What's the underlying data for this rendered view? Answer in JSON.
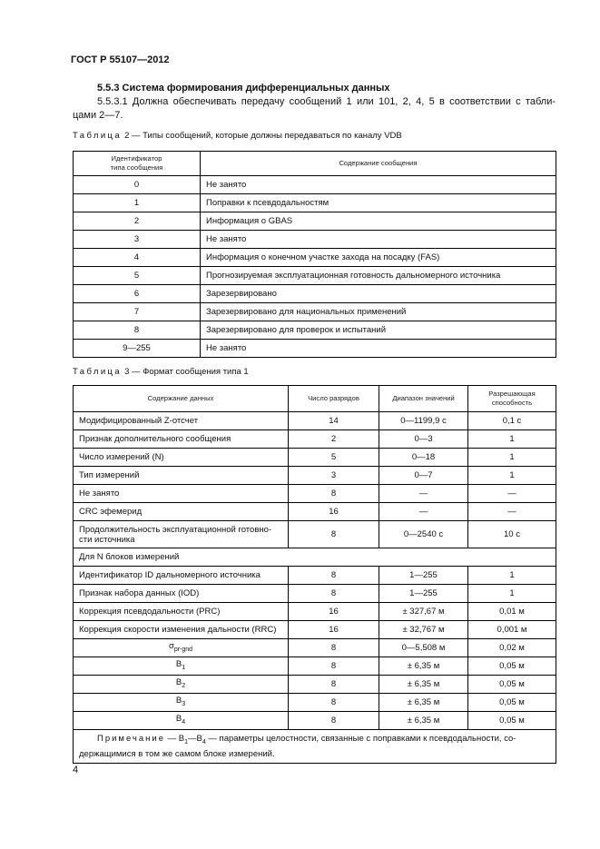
{
  "header": {
    "title": "ГОСТ Р 55107—2012"
  },
  "section": {
    "heading": "5.5.3 Система формирования дифференциальных данных",
    "paragraph": [
      "5.5.3.1 Должна обеспечивать передачу сообщений 1 или 101, 2, 4, 5 в соответствии с табли-",
      "цами 2—7."
    ]
  },
  "table2": {
    "caption": {
      "label": "Таблица",
      "text": "2 — Типы сообщений, которые должны передаваться по каналу VDB"
    },
    "header": [
      [
        "Идентификатор",
        "типа сообщения"
      ],
      "Содержание сообщения"
    ],
    "rows": [
      [
        "0",
        "Не занято"
      ],
      [
        "1",
        "Поправки к псевдодальностям"
      ],
      [
        "2",
        "Информация о GBAS"
      ],
      [
        "3",
        "Не занято"
      ],
      [
        "4",
        "Информация о конечном участке захода на посадку (FAS)"
      ],
      [
        "5",
        "Прогнозируемая эксплуатационная готовность дальномерного источника"
      ],
      [
        "6",
        "Зарезервировано"
      ],
      [
        "7",
        "Зарезервировано для национальных применений"
      ],
      [
        "8",
        "Зарезервировано для проверок и испытаний"
      ],
      [
        "9—255",
        "Не занято"
      ]
    ]
  },
  "table3": {
    "caption": {
      "label": "Таблица",
      "text": "3 — Формат сообщения типа 1"
    },
    "header": [
      "Содержание данных",
      "Число разрядов",
      "Диапазон значений",
      [
        "Разрешающая",
        "способность"
      ]
    ],
    "rows": [
      [
        "Модифицированный Z-отсчет",
        "14",
        "0—1199,9 с",
        "0,1 с"
      ],
      [
        "Признак дополнительного сообщения",
        "2",
        "0—3",
        "1"
      ],
      [
        "Число измерений (N)",
        "5",
        "0—18",
        "1"
      ],
      [
        "Тип измерений",
        "3",
        "0—7",
        "1"
      ],
      [
        "Не занято",
        "8",
        "—",
        "—"
      ],
      [
        "CRC эфемерид",
        "16",
        "—",
        "—"
      ],
      [
        [
          "Продолжительность эксплуатационной готовно-",
          "сти источника"
        ],
        "8",
        "0—2540 с",
        "10 с"
      ],
      [
        "Для N блоков измерений"
      ],
      [
        "Идентификатор ID дальномерного источника",
        "8",
        "1—255",
        "1"
      ],
      [
        "Признак набора данных (IOD)",
        "8",
        "1—255",
        "1"
      ],
      [
        "Коррекция псевдодальности (PRC)",
        "16",
        "± 327,67 м",
        "0,01 м"
      ],
      [
        "Коррекция скорости изменения дальности (RRC)",
        "16",
        "± 32,767 м",
        "0,001 м"
      ],
      [
        {
          "main": "σ",
          "sub": "pr-gnd"
        },
        "8",
        "0—5,508 м",
        "0,02 м"
      ],
      [
        {
          "main": "B",
          "sub": "1"
        },
        "8",
        "± 6,35 м",
        "0,05 м"
      ],
      [
        {
          "main": "B",
          "sub": "2"
        },
        "8",
        "± 6,35 м",
        "0,05 м"
      ],
      [
        {
          "main": "B",
          "sub": "3"
        },
        "8",
        "± 6,35 м",
        "0,05 м"
      ],
      [
        {
          "main": "B",
          "sub": "4"
        },
        "8",
        "± 6,35 м",
        "0,05 м"
      ]
    ],
    "note": {
      "label": "Примечание",
      "lines": [
        [
          "— B",
          {
            "sub": "1"
          },
          "—B",
          {
            "sub": "4"
          },
          " — параметры целостности, связанные с поправками к псевдодальности, со-"
        ],
        [
          "держащимися в том же самом блоке измерений."
        ]
      ]
    }
  },
  "footer": {
    "page": "4"
  }
}
